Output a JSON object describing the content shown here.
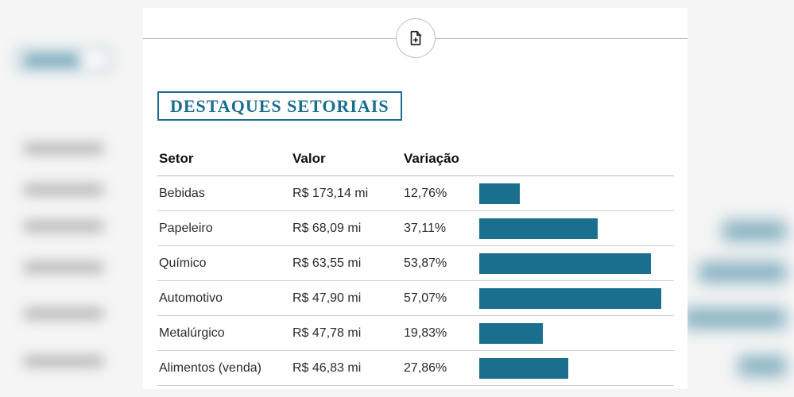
{
  "title": "DESTAQUES SETORIAIS",
  "title_color": "#1a6e8e",
  "title_fontsize": 22,
  "columns": {
    "setor": "Setor",
    "valor": "Valor",
    "variacao": "Variação"
  },
  "bar_color": "#1a6e8e",
  "bar_max_percent": 60,
  "background_color": "#ffffff",
  "grid_color": "#d0d0d0",
  "body_fontsize": 16,
  "header_fontsize": 17,
  "rows": [
    {
      "setor": "Bebidas",
      "valor": "R$ 173,14 mi",
      "variacao_label": "12,76%",
      "variacao": 12.76
    },
    {
      "setor": "Papeleiro",
      "valor": "R$ 68,09 mi",
      "variacao_label": "37,11%",
      "variacao": 37.11
    },
    {
      "setor": "Químico",
      "valor": "R$ 63,55 mi",
      "variacao_label": "53,87%",
      "variacao": 53.87
    },
    {
      "setor": "Automotivo",
      "valor": "R$ 47,90 mi",
      "variacao_label": "57,07%",
      "variacao": 57.07
    },
    {
      "setor": "Metalúrgico",
      "valor": "R$ 47,78 mi",
      "variacao_label": "19,83%",
      "variacao": 19.83
    },
    {
      "setor": "Alimentos (venda)",
      "valor": "R$ 46,83 mi",
      "variacao_label": "27,86%",
      "variacao": 27.86
    }
  ]
}
